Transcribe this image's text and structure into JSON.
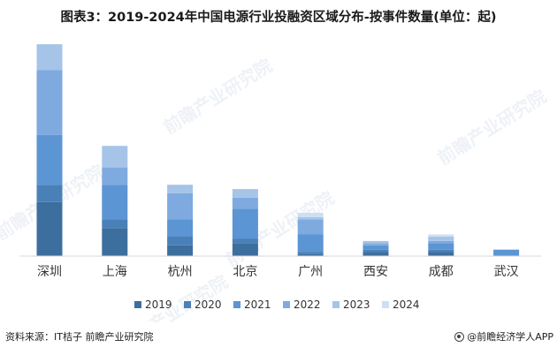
{
  "title": "图表3：2019-2024年中国电源行业投融资区域分布-按事件数量(单位：起)",
  "source_text": "资料来源：IT桔子 前瞻产业研究院",
  "brand_text": "@前瞻经济学人APP",
  "watermark_text": "前瞻产业研究院",
  "chart_data": {
    "type": "bar",
    "stacked": true,
    "title": "图表3：2019-2024年中国电源行业投融资区域分布-按事件数量(单位：起)",
    "xlabel": "",
    "ylabel": "",
    "categories": [
      "深圳",
      "上海",
      "杭州",
      "北京",
      "广州",
      "西安",
      "成都",
      "武汉"
    ],
    "series": [
      {
        "name": "2019",
        "color": "#3d6f9e",
        "values": [
          25,
          13,
          5,
          6,
          1,
          2,
          2,
          0
        ]
      },
      {
        "name": "2020",
        "color": "#4a80b8",
        "values": [
          8,
          4,
          4,
          2,
          1,
          1,
          1,
          0
        ]
      },
      {
        "name": "2021",
        "color": "#5b95d3",
        "values": [
          23,
          16,
          8,
          14,
          8,
          2,
          3,
          3
        ]
      },
      {
        "name": "2022",
        "color": "#7eaadf",
        "values": [
          30,
          8,
          12,
          5,
          7,
          1,
          1,
          0
        ]
      },
      {
        "name": "2023",
        "color": "#a6c4e8",
        "values": [
          12,
          10,
          4,
          4,
          1,
          1,
          2,
          0
        ]
      },
      {
        "name": "2024",
        "color": "#cddff2",
        "values": [
          0,
          0,
          0,
          0,
          2,
          0,
          1,
          0
        ]
      }
    ],
    "ylim": [
      0,
      105
    ],
    "grid": false,
    "legend": "bottom"
  }
}
